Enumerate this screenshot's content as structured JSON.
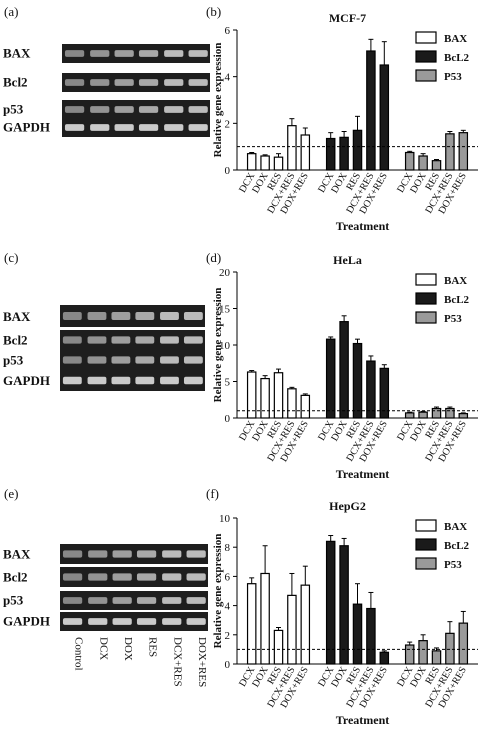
{
  "panels": [
    {
      "id": "a",
      "label": "(a)",
      "type": "gel",
      "rows": [
        "BAX",
        "Bcl2",
        "p53",
        "GAPDH"
      ]
    },
    {
      "id": "b",
      "label": "(b)",
      "type": "bar"
    },
    {
      "id": "c",
      "label": "(c)",
      "type": "gel",
      "rows": [
        "BAX",
        "Bcl2",
        "p53",
        "GAPDH"
      ]
    },
    {
      "id": "d",
      "label": "(d)",
      "type": "bar"
    },
    {
      "id": "e",
      "label": "(e)",
      "type": "gel",
      "rows": [
        "BAX",
        "Bcl2",
        "p53",
        "GAPDH"
      ],
      "lanes": [
        "Control",
        "DCX",
        "DOX",
        "RES",
        "DCX+RES",
        "DOX+RES"
      ]
    },
    {
      "id": "f",
      "label": "(f)",
      "type": "bar"
    }
  ],
  "colors": {
    "bax": "#ffffff",
    "bcl2": "#1a1a1a",
    "p53": "#9a9a9a",
    "gel_bg": "#1e1e1e",
    "band": "#d6d6d6"
  },
  "chart_data": [
    {
      "panel": "b",
      "type": "bar",
      "title": "MCF-7",
      "ylabel": "Relative gene expression",
      "xlabel": "Treatment",
      "ylim": [
        0,
        6
      ],
      "yticks": [
        "0",
        "2",
        "4",
        "6"
      ],
      "yticks_values": [
        0,
        2,
        4,
        6
      ],
      "reference_line": 1,
      "legend_position": "top-right",
      "categories": [
        "DCX",
        "DOX",
        "RES",
        "DCX+RES",
        "DOX+RES"
      ],
      "series": [
        {
          "name": "BAX",
          "values": [
            0.7,
            0.6,
            0.55,
            1.9,
            1.5
          ],
          "errors": [
            0.05,
            0.05,
            0.15,
            0.3,
            0.3
          ]
        },
        {
          "name": "BcL2",
          "values": [
            1.35,
            1.4,
            1.7,
            5.1,
            4.5
          ],
          "errors": [
            0.25,
            0.25,
            0.6,
            0.5,
            1.0
          ]
        },
        {
          "name": "P53",
          "values": [
            0.75,
            0.6,
            0.4,
            1.55,
            1.6
          ],
          "errors": [
            0.05,
            0.1,
            0.05,
            0.1,
            0.1
          ]
        }
      ]
    },
    {
      "panel": "d",
      "type": "bar",
      "title": "HeLa",
      "ylabel": "Relative gene expression",
      "xlabel": "Treatment",
      "ylim": [
        0,
        20
      ],
      "yticks": [
        "0",
        "5",
        "10",
        "15",
        "20"
      ],
      "yticks_values": [
        0,
        5,
        10,
        15,
        20
      ],
      "reference_line": 1,
      "legend_position": "top-right",
      "categories": [
        "DCX",
        "DOX",
        "RES",
        "DCX+RES",
        "DOX+RES"
      ],
      "series": [
        {
          "name": "BAX",
          "values": [
            6.3,
            5.4,
            6.2,
            4.0,
            3.1
          ],
          "errors": [
            0.2,
            0.4,
            0.5,
            0.2,
            0.2
          ]
        },
        {
          "name": "BcL2",
          "values": [
            10.8,
            13.2,
            10.2,
            7.8,
            6.8
          ],
          "errors": [
            0.3,
            0.8,
            0.6,
            0.7,
            0.5
          ]
        },
        {
          "name": "P53",
          "values": [
            0.7,
            0.8,
            1.3,
            1.3,
            0.6
          ],
          "errors": [
            0.1,
            0.1,
            0.2,
            0.2,
            0.1
          ]
        }
      ]
    },
    {
      "panel": "f",
      "type": "bar",
      "title": "HepG2",
      "ylabel": "Relative gene expression",
      "xlabel": "Treatment",
      "ylim": [
        0,
        10
      ],
      "yticks": [
        "0",
        "2",
        "4",
        "6",
        "8",
        "10"
      ],
      "yticks_values": [
        0,
        2,
        4,
        6,
        8,
        10
      ],
      "reference_line": 1,
      "legend_position": "top-right",
      "categories": [
        "DCX",
        "DOX",
        "RES",
        "DCX+RES",
        "DOX+RES"
      ],
      "series": [
        {
          "name": "BAX",
          "values": [
            5.5,
            6.2,
            2.3,
            4.7,
            5.4
          ],
          "errors": [
            0.4,
            1.9,
            0.2,
            1.5,
            1.3
          ]
        },
        {
          "name": "BcL2",
          "values": [
            8.4,
            8.1,
            4.1,
            3.8,
            0.8
          ],
          "errors": [
            0.4,
            0.5,
            1.4,
            1.1,
            0.1
          ]
        },
        {
          "name": "P53",
          "values": [
            1.3,
            1.6,
            0.9,
            2.1,
            2.8
          ],
          "errors": [
            0.2,
            0.4,
            0.2,
            0.8,
            0.8
          ]
        }
      ]
    }
  ]
}
